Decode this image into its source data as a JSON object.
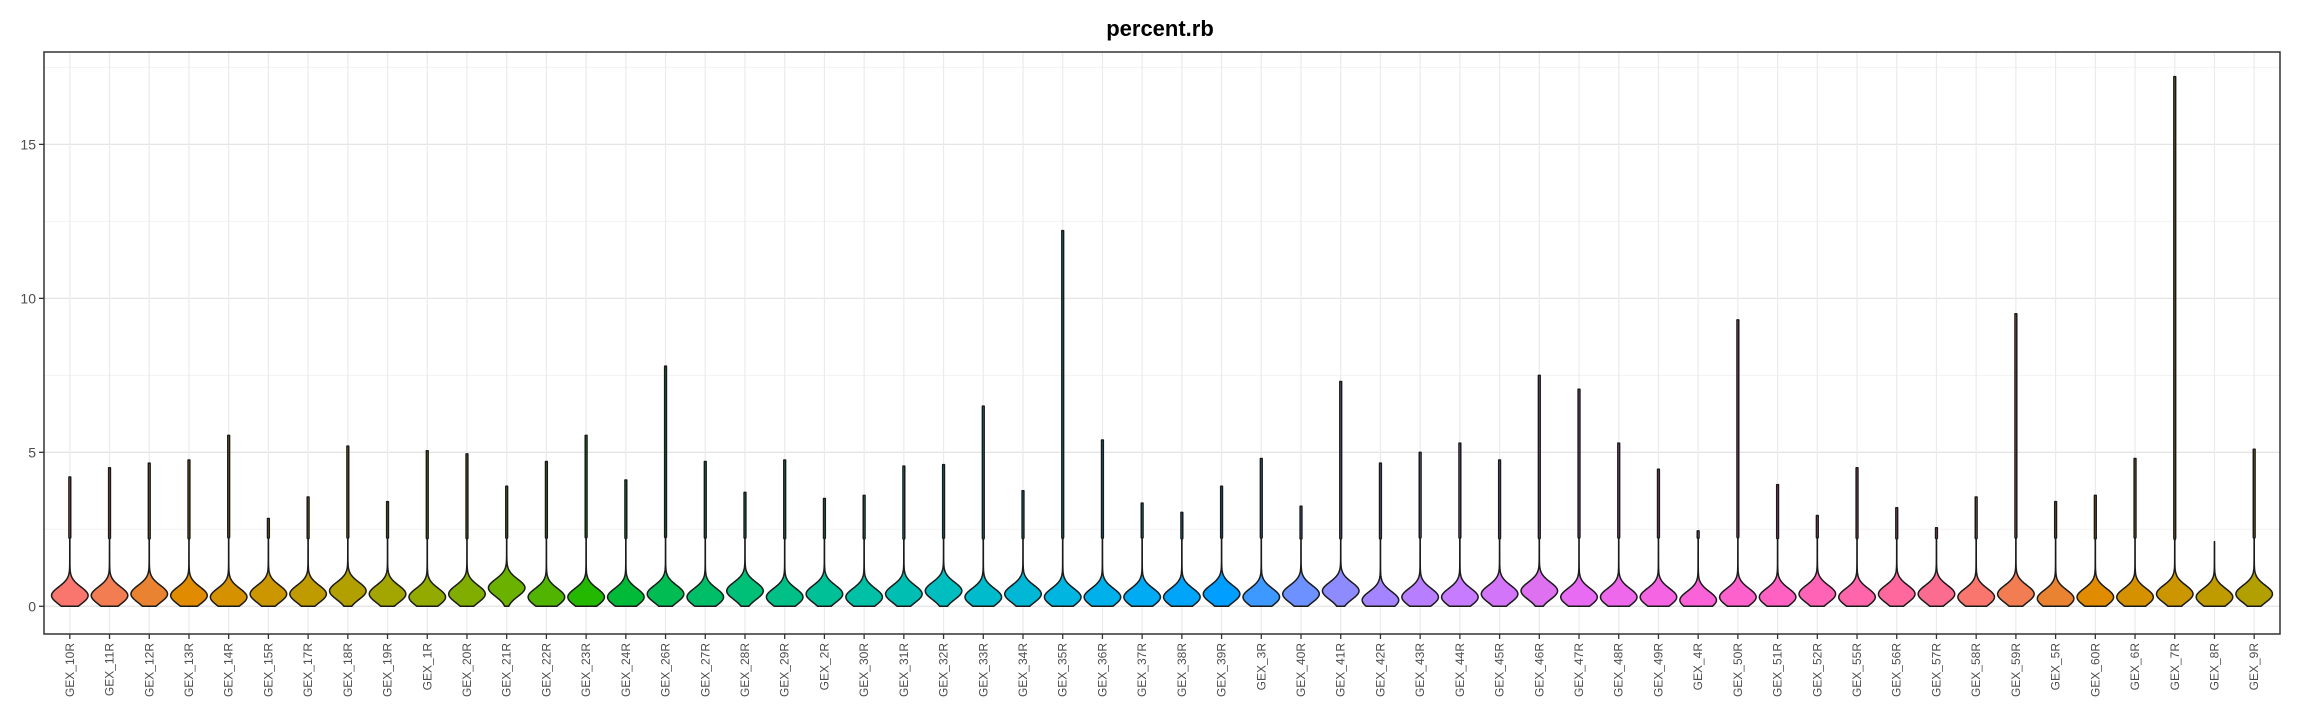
{
  "chart_data": {
    "type": "violin",
    "title": "percent.rb",
    "xlabel": "",
    "ylabel": "",
    "ylim": [
      -0.9,
      18.0
    ],
    "yticks": [
      0,
      5,
      10,
      15
    ],
    "ytick_labels": [
      "0",
      "5",
      "10",
      "15"
    ],
    "grid": true,
    "categories": [
      "GEX_10R",
      "GEX_11R",
      "GEX_12R",
      "GEX_13R",
      "GEX_14R",
      "GEX_15R",
      "GEX_17R",
      "GEX_18R",
      "GEX_19R",
      "GEX_1R",
      "GEX_20R",
      "GEX_21R",
      "GEX_22R",
      "GEX_23R",
      "GEX_24R",
      "GEX_26R",
      "GEX_27R",
      "GEX_28R",
      "GEX_29R",
      "GEX_2R",
      "GEX_30R",
      "GEX_31R",
      "GEX_32R",
      "GEX_33R",
      "GEX_34R",
      "GEX_35R",
      "GEX_36R",
      "GEX_37R",
      "GEX_38R",
      "GEX_39R",
      "GEX_3R",
      "GEX_40R",
      "GEX_41R",
      "GEX_42R",
      "GEX_43R",
      "GEX_44R",
      "GEX_45R",
      "GEX_46R",
      "GEX_47R",
      "GEX_48R",
      "GEX_49R",
      "GEX_4R",
      "GEX_50R",
      "GEX_51R",
      "GEX_52R",
      "GEX_55R",
      "GEX_56R",
      "GEX_57R",
      "GEX_58R",
      "GEX_59R",
      "GEX_5R",
      "GEX_60R",
      "GEX_6R",
      "GEX_7R",
      "GEX_8R",
      "GEX_9R"
    ],
    "max_values": [
      4.2,
      4.5,
      4.65,
      4.75,
      5.55,
      2.85,
      3.55,
      5.2,
      3.4,
      5.05,
      4.95,
      3.9,
      4.7,
      5.55,
      4.1,
      7.8,
      4.7,
      3.7,
      4.75,
      3.5,
      3.6,
      4.55,
      4.6,
      6.5,
      3.75,
      12.2,
      5.4,
      3.35,
      3.05,
      3.9,
      4.8,
      3.25,
      7.3,
      4.65,
      5.0,
      5.3,
      4.75,
      7.5,
      7.05,
      5.3,
      4.45,
      2.45,
      9.3,
      3.95,
      2.95,
      4.5,
      3.2,
      2.55,
      3.55,
      9.5,
      3.4,
      3.6,
      4.8,
      17.2,
      2.1,
      5.1
    ],
    "median_values": [
      0.35,
      0.35,
      0.4,
      0.35,
      0.3,
      0.4,
      0.4,
      0.5,
      0.4,
      0.3,
      0.4,
      0.6,
      0.3,
      0.3,
      0.3,
      0.4,
      0.3,
      0.5,
      0.3,
      0.4,
      0.3,
      0.4,
      0.5,
      0.3,
      0.4,
      0.3,
      0.3,
      0.3,
      0.3,
      0.4,
      0.3,
      0.4,
      0.5,
      0.2,
      0.3,
      0.3,
      0.4,
      0.5,
      0.3,
      0.3,
      0.3,
      0.2,
      0.3,
      0.3,
      0.4,
      0.3,
      0.4,
      0.4,
      0.3,
      0.4,
      0.25,
      0.3,
      0.3,
      0.4,
      0.3,
      0.4
    ],
    "colors": [
      "#F8766D",
      "#F27D52",
      "#EA8331",
      "#E08B00",
      "#D69100",
      "#CB9600",
      "#BF9B00",
      "#B2A000",
      "#A3A500",
      "#93AA00",
      "#81AD00",
      "#6BB100",
      "#50B400",
      "#25B800",
      "#00BA38",
      "#00BC52",
      "#00BE67",
      "#00C078",
      "#00C088",
      "#00C097",
      "#00C0A5",
      "#00BFB2",
      "#00BDBF",
      "#00BBCB",
      "#00B8D6",
      "#00B5E0",
      "#00B0EA",
      "#00ABF3",
      "#00A5FA",
      "#009EFF",
      "#3D98FF",
      "#6D91FF",
      "#8E8BFF",
      "#A585FF",
      "#B77FFF",
      "#C77CFF",
      "#D375F8",
      "#DD71F0",
      "#E76BF3",
      "#EE68EC",
      "#F564E3",
      "#FA62D8",
      "#FD61CC",
      "#FF61C3",
      "#FF63B6",
      "#FF65AA",
      "#FF689D",
      "#FC6B90",
      "#F8766D",
      "#F27D52",
      "#EA8331",
      "#E08B00",
      "#D69100",
      "#CB9600",
      "#BF9B00",
      "#B2A000"
    ]
  }
}
